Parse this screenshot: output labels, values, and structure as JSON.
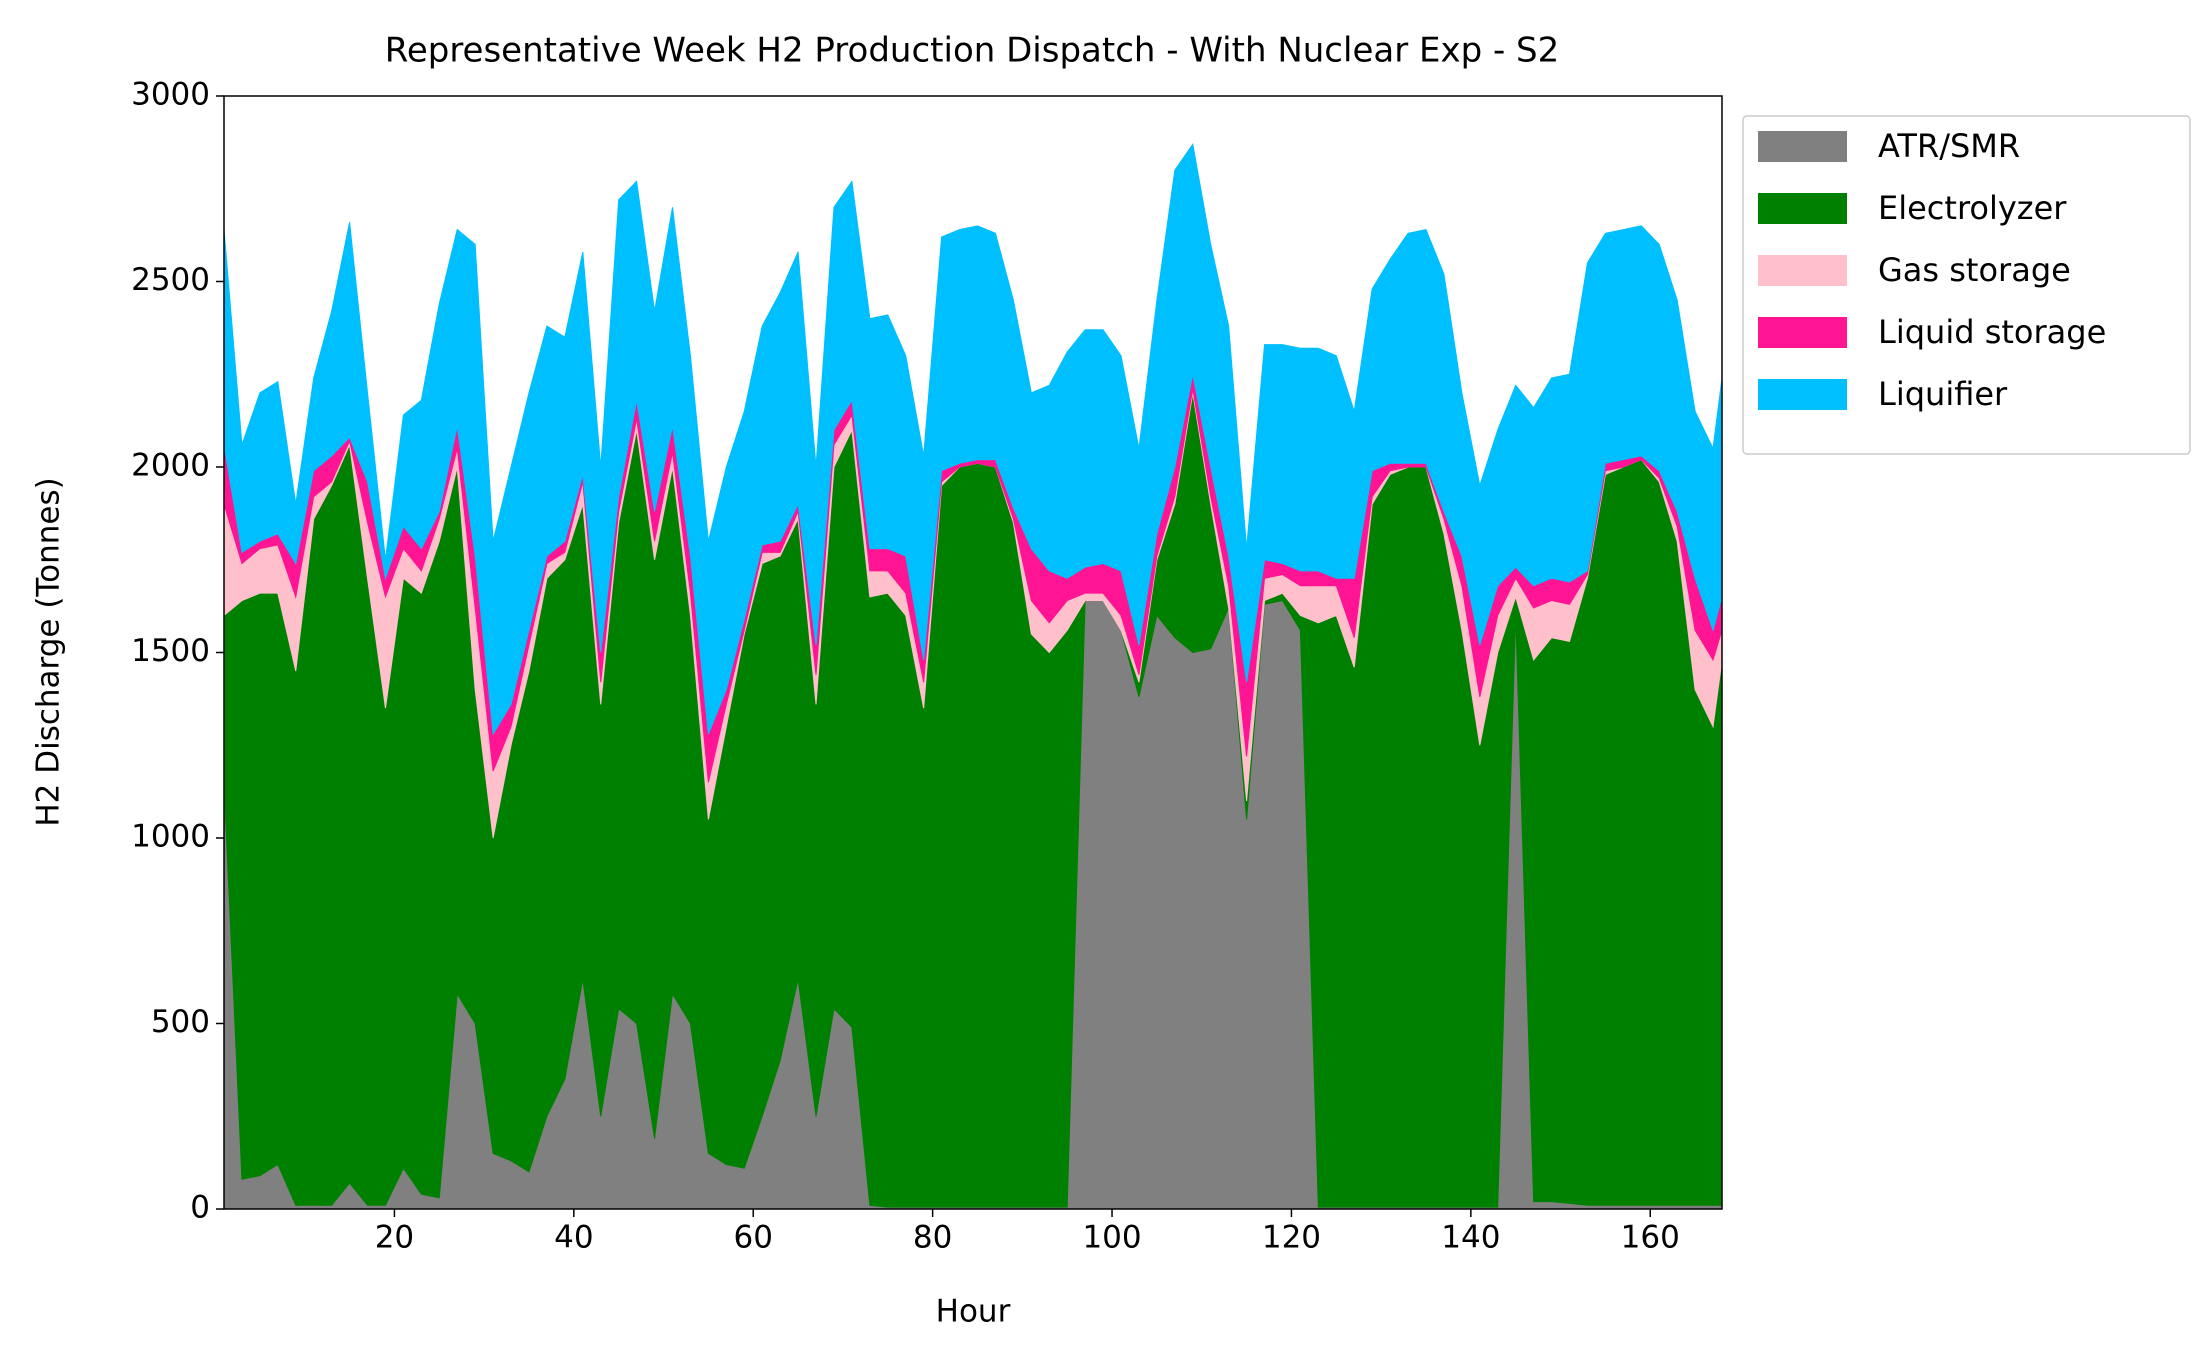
{
  "chart_data": {
    "type": "stacked_area",
    "title": "Representative Week H2 Production Dispatch - With Nuclear Exp - S2",
    "xlabel": "Hour",
    "ylabel": "H2 Discharge (Tonnes)",
    "x": [
      1,
      3,
      5,
      7,
      9,
      11,
      13,
      15,
      17,
      19,
      21,
      23,
      25,
      27,
      29,
      31,
      33,
      35,
      37,
      39,
      41,
      43,
      45,
      47,
      49,
      51,
      53,
      55,
      57,
      59,
      61,
      63,
      65,
      67,
      69,
      71,
      73,
      75,
      77,
      79,
      81,
      83,
      85,
      87,
      89,
      91,
      93,
      95,
      97,
      99,
      101,
      103,
      105,
      107,
      109,
      111,
      113,
      115,
      117,
      119,
      121,
      123,
      125,
      127,
      129,
      131,
      133,
      135,
      137,
      139,
      141,
      143,
      145,
      147,
      149,
      151,
      153,
      155,
      157,
      159,
      161,
      163,
      165,
      167,
      168
    ],
    "series": [
      {
        "name": "ATR/SMR",
        "color": "#808080",
        "values": [
          1150,
          80,
          90,
          120,
          10,
          10,
          10,
          70,
          10,
          10,
          110,
          40,
          30,
          580,
          500,
          150,
          130,
          100,
          250,
          350,
          620,
          250,
          540,
          500,
          190,
          580,
          500,
          150,
          120,
          110,
          250,
          400,
          620,
          250,
          540,
          490,
          10,
          5,
          5,
          5,
          5,
          5,
          5,
          5,
          5,
          5,
          5,
          5,
          1640,
          1640,
          1560,
          1380,
          1600,
          1540,
          1500,
          1510,
          1620,
          1050,
          1630,
          1640,
          1560,
          5,
          5,
          5,
          5,
          5,
          5,
          5,
          5,
          5,
          5,
          5,
          1600,
          20,
          20,
          15,
          10,
          10,
          10,
          10,
          10,
          10,
          10,
          10,
          10
        ]
      },
      {
        "name": "Electrolyzer",
        "color": "#008000",
        "values": [
          450,
          1560,
          1570,
          1540,
          1440,
          1850,
          1940,
          1990,
          1690,
          1340,
          1590,
          1620,
          1770,
          1420,
          900,
          850,
          1120,
          1350,
          1450,
          1400,
          1280,
          1110,
          1310,
          1600,
          1560,
          1420,
          1100,
          900,
          1180,
          1440,
          1490,
          1360,
          1240,
          1110,
          1460,
          1610,
          1640,
          1655,
          1595,
          1345,
          1945,
          1995,
          2005,
          1995,
          1845,
          1545,
          1495,
          1555,
          0,
          0,
          0,
          40,
          150,
          360,
          700,
          390,
          0,
          50,
          10,
          20,
          40,
          1575,
          1595,
          1455,
          1895,
          1975,
          1995,
          1995,
          1815,
          1555,
          1245,
          1495,
          50,
          1460,
          1520,
          1515,
          1690,
          1970,
          1990,
          2010,
          1950,
          1790,
          1390,
          1290,
          1470
        ]
      },
      {
        "name": "Gas storage",
        "color": "#ffc0cb",
        "values": [
          300,
          100,
          120,
          130,
          200,
          60,
          10,
          10,
          150,
          300,
          80,
          60,
          60,
          50,
          220,
          180,
          50,
          70,
          40,
          20,
          60,
          60,
          30,
          30,
          50,
          40,
          60,
          100,
          60,
          10,
          30,
          10,
          20,
          80,
          60,
          40,
          70,
          60,
          60,
          70,
          10,
          0,
          0,
          0,
          10,
          90,
          80,
          80,
          20,
          20,
          40,
          20,
          10,
          20,
          10,
          20,
          60,
          120,
          60,
          50,
          80,
          100,
          80,
          80,
          20,
          10,
          0,
          0,
          40,
          120,
          130,
          100,
          50,
          140,
          100,
          100,
          10,
          10,
          0,
          0,
          10,
          40,
          160,
          180,
          80
        ]
      },
      {
        "name": "Liquid storage",
        "color": "#ff1493",
        "values": [
          160,
          30,
          20,
          30,
          90,
          70,
          70,
          10,
          110,
          50,
          60,
          60,
          20,
          60,
          140,
          100,
          60,
          40,
          20,
          30,
          20,
          80,
          40,
          50,
          80,
          70,
          100,
          130,
          40,
          30,
          20,
          30,
          20,
          80,
          40,
          40,
          60,
          60,
          100,
          60,
          30,
          10,
          10,
          20,
          30,
          140,
          140,
          60,
          70,
          80,
          120,
          80,
          60,
          80,
          40,
          80,
          80,
          200,
          50,
          30,
          40,
          40,
          20,
          160,
          70,
          20,
          10,
          10,
          20,
          80,
          140,
          80,
          30,
          60,
          60,
          60,
          10,
          20,
          20,
          10,
          20,
          40,
          140,
          80,
          90
        ]
      },
      {
        "name": "Liquifier",
        "color": "#00bfff",
        "values": [
          580,
          290,
          400,
          410,
          160,
          250,
          390,
          580,
          240,
          50,
          300,
          400,
          560,
          530,
          840,
          520,
          640,
          640,
          620,
          550,
          600,
          500,
          800,
          590,
          540,
          590,
          540,
          520,
          600,
          560,
          590,
          670,
          680,
          480,
          600,
          590,
          620,
          630,
          540,
          550,
          630,
          630,
          630,
          610,
          560,
          420,
          500,
          610,
          640,
          630,
          580,
          530,
          630,
          800,
          620,
          600,
          620,
          360,
          580,
          590,
          600,
          600,
          600,
          450,
          490,
          550,
          620,
          630,
          640,
          440,
          430,
          420,
          490,
          480,
          540,
          560,
          830,
          620,
          620,
          620,
          610,
          570,
          450,
          490,
          590
        ]
      }
    ],
    "xlim": [
      1,
      168
    ],
    "xticks": [
      20,
      40,
      60,
      80,
      100,
      120,
      140,
      160
    ],
    "ylim": [
      0,
      3000
    ],
    "yticks": [
      0,
      500,
      1000,
      1500,
      2000,
      2500,
      3000
    ],
    "grid": false,
    "legend": "outside upper right"
  }
}
